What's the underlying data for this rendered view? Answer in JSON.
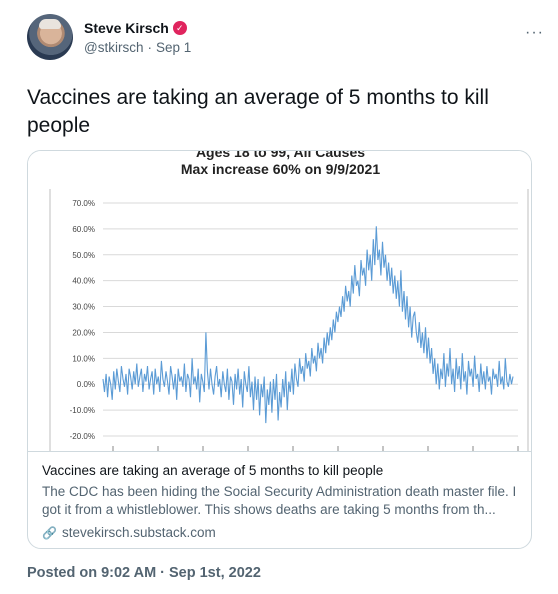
{
  "author": {
    "display_name": "Steve Kirsch",
    "verified_icon": "verified-badge-icon",
    "handle": "@stkirsch",
    "separator": "·",
    "date": "Sep 1"
  },
  "more_label": "···",
  "tweet": {
    "text": "Vaccines are taking an average of 5 months to kill people"
  },
  "card": {
    "chart_cut_title": "Ages 18 to 99, All Causes",
    "chart_title": "Max increase 60% on 9/9/2021",
    "title": "Vaccines are taking an average of 5 months to kill people",
    "description": "The CDC has been hiding the Social Security Administration death master file. I got it from a whistleblower. This shows deaths are taking 5 months from th...",
    "link_icon": "link-icon",
    "domain": "stevekirsch.substack.com"
  },
  "footer": {
    "posted_label": "Posted on",
    "time": "9:02 AM",
    "separator": "·",
    "date": "Sep 1st, 2022"
  },
  "chart_data": {
    "type": "line",
    "title": "Max increase 60% on 9/9/2021",
    "yticks": [
      "70.0%",
      "60.0%",
      "50.0%",
      "40.0%",
      "30.0%",
      "20.0%",
      "10.0%",
      "0.0%",
      "-10.0%",
      "-20.0%"
    ],
    "ylim": [
      -20,
      70
    ],
    "grid": true,
    "series_color": "#5b9bd5",
    "series": [
      {
        "values": [
          2,
          -3,
          4,
          -5,
          3,
          0,
          -6,
          5,
          -2,
          6,
          1,
          -3,
          7,
          2,
          -1,
          4,
          -4,
          6,
          3,
          -2,
          5,
          0,
          8,
          -1,
          3,
          6,
          -3,
          4,
          1,
          7,
          -2,
          2,
          5,
          -4,
          6,
          0,
          3,
          -3,
          9,
          2,
          -1,
          5,
          1,
          -4,
          7,
          3,
          -2,
          4,
          -6,
          6,
          1,
          3,
          -1,
          8,
          -3,
          4,
          2,
          -5,
          10,
          0,
          3,
          -2,
          6,
          -7,
          4,
          1,
          -3,
          20,
          5,
          -2,
          6,
          0,
          -4,
          3,
          7,
          -1,
          2,
          -5,
          5,
          0,
          -3,
          6,
          -6,
          3,
          1,
          -8,
          4,
          -2,
          6,
          -4,
          2,
          -9,
          5,
          0,
          -3,
          7,
          -5,
          1,
          -10,
          3,
          -6,
          2,
          -12,
          0,
          -5,
          3,
          -15,
          -2,
          -8,
          1,
          -11,
          2,
          -6,
          4,
          -14,
          -3,
          -9,
          2,
          -5,
          5,
          -10,
          1,
          -3,
          6,
          -4,
          8,
          2,
          -1,
          10,
          4,
          7,
          1,
          12,
          6,
          9,
          3,
          14,
          8,
          11,
          5,
          16,
          10,
          14,
          8,
          18,
          12,
          20,
          15,
          22,
          17,
          25,
          20,
          28,
          24,
          30,
          26,
          34,
          28,
          38,
          32,
          36,
          30,
          42,
          35,
          46,
          38,
          40,
          34,
          48,
          42,
          45,
          38,
          52,
          44,
          50,
          40,
          56,
          46,
          61,
          48,
          52,
          42,
          55,
          45,
          50,
          40,
          47,
          38,
          45,
          35,
          42,
          33,
          40,
          30,
          44,
          28,
          36,
          25,
          34,
          22,
          30,
          18,
          26,
          28,
          20,
          16,
          24,
          14,
          20,
          12,
          22,
          10,
          18,
          8,
          14,
          4,
          10,
          0,
          8,
          -2,
          6,
          2,
          12,
          -1,
          8,
          3,
          14,
          0,
          6,
          -3,
          10,
          2,
          7,
          -2,
          12,
          1,
          5,
          -4,
          9,
          3,
          6,
          -1,
          11,
          2,
          4,
          -3,
          8,
          0,
          5,
          -2,
          7,
          1,
          3,
          -4,
          6,
          2,
          4,
          -1,
          9,
          0,
          3,
          -2,
          10,
          1,
          -1,
          4,
          0,
          3
        ]
      }
    ]
  }
}
